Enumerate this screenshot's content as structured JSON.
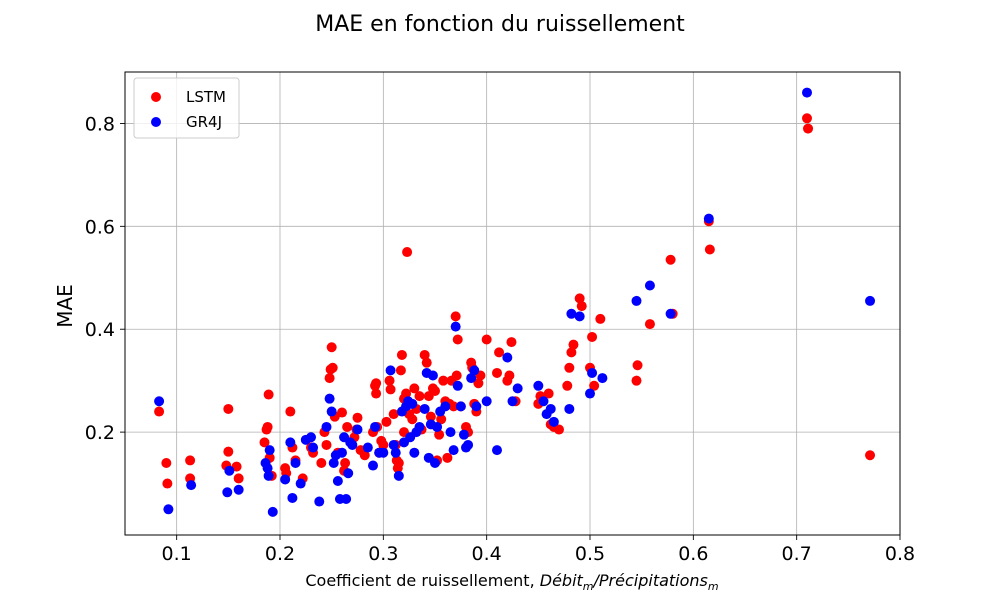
{
  "chart_data": {
    "type": "scatter",
    "title": "MAE en fonction du ruissellement",
    "xlabel_prefix": "Coefficient de ruissellement, ",
    "xlabel_math": {
      "term1": "Débit",
      "sub1": "m",
      "sep": "/",
      "term2": "Précipitations",
      "sub2": "m"
    },
    "ylabel": "MAE",
    "xlim": [
      0.05,
      0.8
    ],
    "ylim": [
      0.0,
      0.9
    ],
    "xticks": [
      0.1,
      0.2,
      0.3,
      0.4,
      0.5,
      0.6,
      0.7,
      0.8
    ],
    "xtick_labels": [
      "0.1",
      "0.2",
      "0.3",
      "0.4",
      "0.5",
      "0.6",
      "0.7",
      "0.8"
    ],
    "yticks": [
      0.2,
      0.4,
      0.6,
      0.8
    ],
    "ytick_labels": [
      "0.2",
      "0.4",
      "0.6",
      "0.8"
    ],
    "grid": true,
    "legend_position": "top-left",
    "series": [
      {
        "name": "LSTM",
        "color": "#ff0000",
        "points": [
          [
            0.083,
            0.24
          ],
          [
            0.09,
            0.14
          ],
          [
            0.091,
            0.1
          ],
          [
            0.113,
            0.145
          ],
          [
            0.113,
            0.11
          ],
          [
            0.148,
            0.135
          ],
          [
            0.15,
            0.245
          ],
          [
            0.15,
            0.162
          ],
          [
            0.158,
            0.133
          ],
          [
            0.16,
            0.11
          ],
          [
            0.185,
            0.18
          ],
          [
            0.187,
            0.205
          ],
          [
            0.188,
            0.21
          ],
          [
            0.189,
            0.273
          ],
          [
            0.19,
            0.15
          ],
          [
            0.192,
            0.115
          ],
          [
            0.205,
            0.13
          ],
          [
            0.206,
            0.12
          ],
          [
            0.21,
            0.24
          ],
          [
            0.212,
            0.17
          ],
          [
            0.215,
            0.145
          ],
          [
            0.222,
            0.11
          ],
          [
            0.23,
            0.17
          ],
          [
            0.232,
            0.16
          ],
          [
            0.24,
            0.14
          ],
          [
            0.243,
            0.2
          ],
          [
            0.245,
            0.175
          ],
          [
            0.248,
            0.305
          ],
          [
            0.249,
            0.322
          ],
          [
            0.25,
            0.365
          ],
          [
            0.251,
            0.325
          ],
          [
            0.253,
            0.23
          ],
          [
            0.256,
            0.16
          ],
          [
            0.26,
            0.238
          ],
          [
            0.262,
            0.125
          ],
          [
            0.263,
            0.14
          ],
          [
            0.265,
            0.21
          ],
          [
            0.272,
            0.19
          ],
          [
            0.274,
            0.205
          ],
          [
            0.275,
            0.228
          ],
          [
            0.278,
            0.165
          ],
          [
            0.282,
            0.155
          ],
          [
            0.29,
            0.2
          ],
          [
            0.292,
            0.29
          ],
          [
            0.293,
            0.295
          ],
          [
            0.293,
            0.275
          ],
          [
            0.294,
            0.21
          ],
          [
            0.296,
            0.16
          ],
          [
            0.298,
            0.183
          ],
          [
            0.3,
            0.175
          ],
          [
            0.303,
            0.22
          ],
          [
            0.306,
            0.3
          ],
          [
            0.307,
            0.283
          ],
          [
            0.31,
            0.235
          ],
          [
            0.312,
            0.175
          ],
          [
            0.313,
            0.145
          ],
          [
            0.314,
            0.13
          ],
          [
            0.315,
            0.14
          ],
          [
            0.317,
            0.32
          ],
          [
            0.318,
            0.35
          ],
          [
            0.32,
            0.265
          ],
          [
            0.32,
            0.2
          ],
          [
            0.322,
            0.275
          ],
          [
            0.323,
            0.55
          ],
          [
            0.325,
            0.235
          ],
          [
            0.328,
            0.225
          ],
          [
            0.33,
            0.285
          ],
          [
            0.332,
            0.245
          ],
          [
            0.335,
            0.27
          ],
          [
            0.337,
            0.205
          ],
          [
            0.34,
            0.35
          ],
          [
            0.342,
            0.335
          ],
          [
            0.344,
            0.27
          ],
          [
            0.346,
            0.23
          ],
          [
            0.348,
            0.285
          ],
          [
            0.35,
            0.28
          ],
          [
            0.352,
            0.145
          ],
          [
            0.354,
            0.195
          ],
          [
            0.356,
            0.225
          ],
          [
            0.358,
            0.3
          ],
          [
            0.36,
            0.26
          ],
          [
            0.362,
            0.15
          ],
          [
            0.364,
            0.255
          ],
          [
            0.366,
            0.3
          ],
          [
            0.368,
            0.25
          ],
          [
            0.37,
            0.425
          ],
          [
            0.371,
            0.31
          ],
          [
            0.372,
            0.38
          ],
          [
            0.375,
            0.25
          ],
          [
            0.38,
            0.21
          ],
          [
            0.382,
            0.2
          ],
          [
            0.385,
            0.335
          ],
          [
            0.386,
            0.325
          ],
          [
            0.388,
            0.255
          ],
          [
            0.39,
            0.24
          ],
          [
            0.392,
            0.295
          ],
          [
            0.394,
            0.31
          ],
          [
            0.4,
            0.38
          ],
          [
            0.41,
            0.315
          ],
          [
            0.412,
            0.355
          ],
          [
            0.42,
            0.3
          ],
          [
            0.422,
            0.31
          ],
          [
            0.424,
            0.375
          ],
          [
            0.428,
            0.26
          ],
          [
            0.45,
            0.255
          ],
          [
            0.452,
            0.27
          ],
          [
            0.46,
            0.275
          ],
          [
            0.462,
            0.215
          ],
          [
            0.465,
            0.21
          ],
          [
            0.47,
            0.205
          ],
          [
            0.478,
            0.29
          ],
          [
            0.48,
            0.325
          ],
          [
            0.482,
            0.355
          ],
          [
            0.484,
            0.37
          ],
          [
            0.49,
            0.46
          ],
          [
            0.492,
            0.445
          ],
          [
            0.5,
            0.325
          ],
          [
            0.502,
            0.385
          ],
          [
            0.504,
            0.29
          ],
          [
            0.51,
            0.42
          ],
          [
            0.545,
            0.3
          ],
          [
            0.546,
            0.33
          ],
          [
            0.558,
            0.41
          ],
          [
            0.578,
            0.535
          ],
          [
            0.58,
            0.43
          ],
          [
            0.615,
            0.61
          ],
          [
            0.616,
            0.555
          ],
          [
            0.71,
            0.81
          ],
          [
            0.711,
            0.79
          ],
          [
            0.771,
            0.155
          ]
        ]
      },
      {
        "name": "GR4J",
        "color": "#0000ff",
        "points": [
          [
            0.083,
            0.26
          ],
          [
            0.092,
            0.05
          ],
          [
            0.114,
            0.097
          ],
          [
            0.149,
            0.083
          ],
          [
            0.151,
            0.125
          ],
          [
            0.16,
            0.088
          ],
          [
            0.186,
            0.14
          ],
          [
            0.188,
            0.13
          ],
          [
            0.189,
            0.115
          ],
          [
            0.19,
            0.165
          ],
          [
            0.193,
            0.045
          ],
          [
            0.205,
            0.108
          ],
          [
            0.21,
            0.18
          ],
          [
            0.212,
            0.072
          ],
          [
            0.215,
            0.14
          ],
          [
            0.22,
            0.1
          ],
          [
            0.225,
            0.185
          ],
          [
            0.23,
            0.19
          ],
          [
            0.232,
            0.17
          ],
          [
            0.238,
            0.065
          ],
          [
            0.245,
            0.21
          ],
          [
            0.248,
            0.265
          ],
          [
            0.25,
            0.24
          ],
          [
            0.252,
            0.14
          ],
          [
            0.254,
            0.155
          ],
          [
            0.256,
            0.105
          ],
          [
            0.258,
            0.07
          ],
          [
            0.26,
            0.16
          ],
          [
            0.262,
            0.19
          ],
          [
            0.264,
            0.07
          ],
          [
            0.266,
            0.12
          ],
          [
            0.268,
            0.18
          ],
          [
            0.27,
            0.175
          ],
          [
            0.275,
            0.205
          ],
          [
            0.285,
            0.17
          ],
          [
            0.29,
            0.135
          ],
          [
            0.292,
            0.21
          ],
          [
            0.296,
            0.16
          ],
          [
            0.3,
            0.16
          ],
          [
            0.307,
            0.32
          ],
          [
            0.31,
            0.175
          ],
          [
            0.312,
            0.16
          ],
          [
            0.315,
            0.115
          ],
          [
            0.318,
            0.24
          ],
          [
            0.32,
            0.18
          ],
          [
            0.322,
            0.25
          ],
          [
            0.324,
            0.26
          ],
          [
            0.326,
            0.19
          ],
          [
            0.328,
            0.255
          ],
          [
            0.33,
            0.16
          ],
          [
            0.332,
            0.2
          ],
          [
            0.335,
            0.21
          ],
          [
            0.34,
            0.245
          ],
          [
            0.342,
            0.315
          ],
          [
            0.344,
            0.15
          ],
          [
            0.346,
            0.215
          ],
          [
            0.348,
            0.31
          ],
          [
            0.35,
            0.14
          ],
          [
            0.352,
            0.21
          ],
          [
            0.355,
            0.24
          ],
          [
            0.36,
            0.25
          ],
          [
            0.365,
            0.2
          ],
          [
            0.368,
            0.165
          ],
          [
            0.37,
            0.405
          ],
          [
            0.372,
            0.29
          ],
          [
            0.375,
            0.25
          ],
          [
            0.378,
            0.195
          ],
          [
            0.38,
            0.17
          ],
          [
            0.382,
            0.175
          ],
          [
            0.385,
            0.305
          ],
          [
            0.388,
            0.32
          ],
          [
            0.39,
            0.25
          ],
          [
            0.4,
            0.26
          ],
          [
            0.41,
            0.165
          ],
          [
            0.42,
            0.345
          ],
          [
            0.425,
            0.26
          ],
          [
            0.43,
            0.285
          ],
          [
            0.45,
            0.29
          ],
          [
            0.455,
            0.26
          ],
          [
            0.458,
            0.235
          ],
          [
            0.462,
            0.245
          ],
          [
            0.465,
            0.22
          ],
          [
            0.48,
            0.245
          ],
          [
            0.482,
            0.43
          ],
          [
            0.49,
            0.425
          ],
          [
            0.5,
            0.275
          ],
          [
            0.502,
            0.315
          ],
          [
            0.512,
            0.305
          ],
          [
            0.545,
            0.455
          ],
          [
            0.558,
            0.485
          ],
          [
            0.578,
            0.43
          ],
          [
            0.615,
            0.615
          ],
          [
            0.71,
            0.86
          ],
          [
            0.771,
            0.455
          ]
        ]
      }
    ]
  }
}
